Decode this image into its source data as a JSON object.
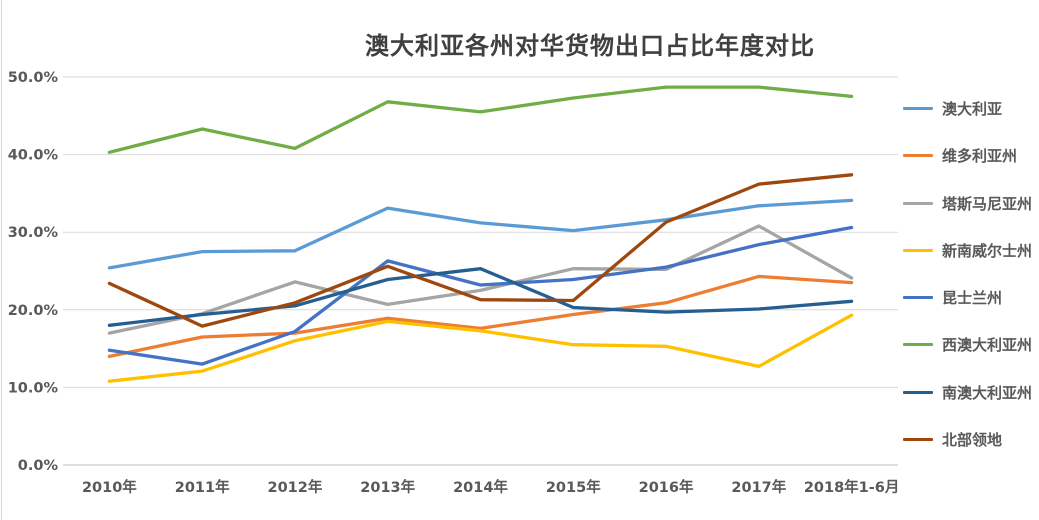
{
  "page": {
    "title": "澳大利亚各州对华货物出口占比年度对比"
  },
  "colors": {
    "title_text": "#404040",
    "axis_text": "#595959",
    "legend_text": "#595959",
    "gridline": "#d9d9d9",
    "axis_line": "#bfbfbf",
    "background": "#ffffff"
  },
  "chart_data": {
    "type": "line",
    "title": "澳大利亚各州对华货物出口占比年度对比",
    "xlabel": "",
    "ylabel": "",
    "ylim": [
      0,
      50
    ],
    "y_ticks": [
      "0.0%",
      "10.0%",
      "20.0%",
      "30.0%",
      "40.0%",
      "50.0%"
    ],
    "grid": true,
    "legend_position": "right",
    "categories": [
      "2010年",
      "2011年",
      "2012年",
      "2013年",
      "2014年",
      "2015年",
      "2016年",
      "2017年",
      "2018年1-6月"
    ],
    "series": [
      {
        "name": "澳大利亚",
        "color": "#5B9BD5",
        "values": [
          25.4,
          27.5,
          27.6,
          33.1,
          31.2,
          30.2,
          31.6,
          33.4,
          34.1
        ]
      },
      {
        "name": "维多利亚州",
        "color": "#ED7D31",
        "values": [
          14.0,
          16.5,
          17.0,
          18.9,
          17.6,
          19.4,
          20.9,
          24.3,
          23.5
        ]
      },
      {
        "name": "塔斯马尼亚州",
        "color": "#A5A5A5",
        "values": [
          17.0,
          19.5,
          23.6,
          20.7,
          22.5,
          25.3,
          25.2,
          30.8,
          24.1
        ]
      },
      {
        "name": "新南威尔士州",
        "color": "#FFC000",
        "values": [
          10.8,
          12.1,
          16.0,
          18.5,
          17.3,
          15.5,
          15.3,
          12.7,
          19.3
        ]
      },
      {
        "name": "昆士兰州",
        "color": "#4472C4",
        "values": [
          14.8,
          13.0,
          17.2,
          26.3,
          23.2,
          23.9,
          25.5,
          28.4,
          30.6
        ]
      },
      {
        "name": "西澳大利亚州",
        "color": "#70AD47",
        "values": [
          40.3,
          43.3,
          40.8,
          46.8,
          45.5,
          47.3,
          48.7,
          48.7,
          47.5
        ]
      },
      {
        "name": "南澳大利亚州",
        "color": "#255E91",
        "values": [
          18.0,
          19.4,
          20.5,
          23.9,
          25.3,
          20.3,
          19.7,
          20.1,
          21.1
        ]
      },
      {
        "name": "北部领地",
        "color": "#9E480E",
        "values": [
          23.4,
          17.9,
          20.9,
          25.6,
          21.3,
          21.2,
          31.3,
          36.2,
          37.4
        ]
      }
    ]
  }
}
